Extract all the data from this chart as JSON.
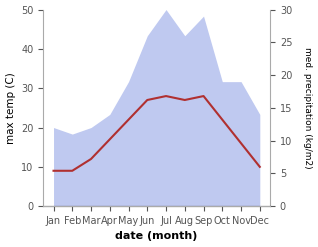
{
  "months": [
    "Jan",
    "Feb",
    "Mar",
    "Apr",
    "May",
    "Jun",
    "Jul",
    "Aug",
    "Sep",
    "Oct",
    "Nov",
    "Dec"
  ],
  "temp_max": [
    9,
    9,
    12,
    17,
    22,
    27,
    28,
    27,
    28,
    22,
    16,
    10
  ],
  "precipitation": [
    12,
    11,
    12,
    14,
    19,
    26,
    30,
    26,
    29,
    19,
    19,
    14
  ],
  "temp_color": "#b03030",
  "precip_fill_color": "#bfc9f0",
  "xlabel": "date (month)",
  "ylabel_left": "max temp (C)",
  "ylabel_right": "med. precipitation (kg/m2)",
  "ylim_left": [
    0,
    50
  ],
  "ylim_right": [
    0,
    30
  ],
  "yticks_left": [
    0,
    10,
    20,
    30,
    40,
    50
  ],
  "yticks_right": [
    0,
    5,
    10,
    15,
    20,
    25,
    30
  ],
  "line_width": 1.5
}
